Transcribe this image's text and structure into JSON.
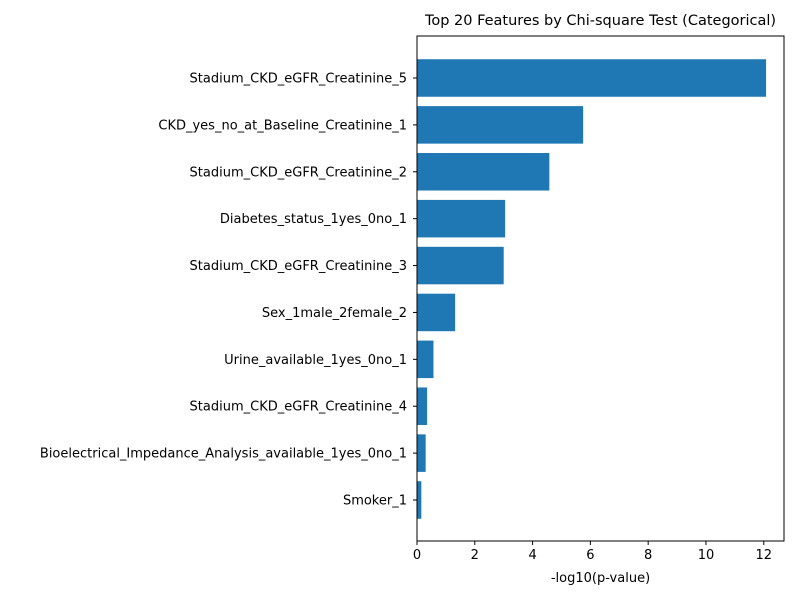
{
  "chart_data": {
    "type": "bar",
    "orientation": "horizontal",
    "title": "Top 20 Features by Chi-square Test (Categorical)",
    "xlabel": "-log10(p-value)",
    "ylabel": "",
    "xlim": [
      0,
      12.7
    ],
    "xticks": [
      0,
      2,
      4,
      6,
      8,
      10,
      12
    ],
    "grid": false,
    "bar_color": "#1f77b4",
    "categories": [
      "Stadium_CKD_eGFR_Creatinine_5",
      "CKD_yes_no_at_Baseline_Creatinine_1",
      "Stadium_CKD_eGFR_Creatinine_2",
      "Diabetes_status_1yes_0no_1",
      "Stadium_CKD_eGFR_Creatinine_3",
      "Sex_1male_2female_2",
      "Urine_available_1yes_0no_1",
      "Stadium_CKD_eGFR_Creatinine_4",
      "Bioelectrical_Impedance_Analysis_available_1yes_0no_1",
      "Smoker_1"
    ],
    "values": [
      12.08,
      5.75,
      4.58,
      3.05,
      3.0,
      1.32,
      0.57,
      0.35,
      0.3,
      0.15
    ]
  }
}
